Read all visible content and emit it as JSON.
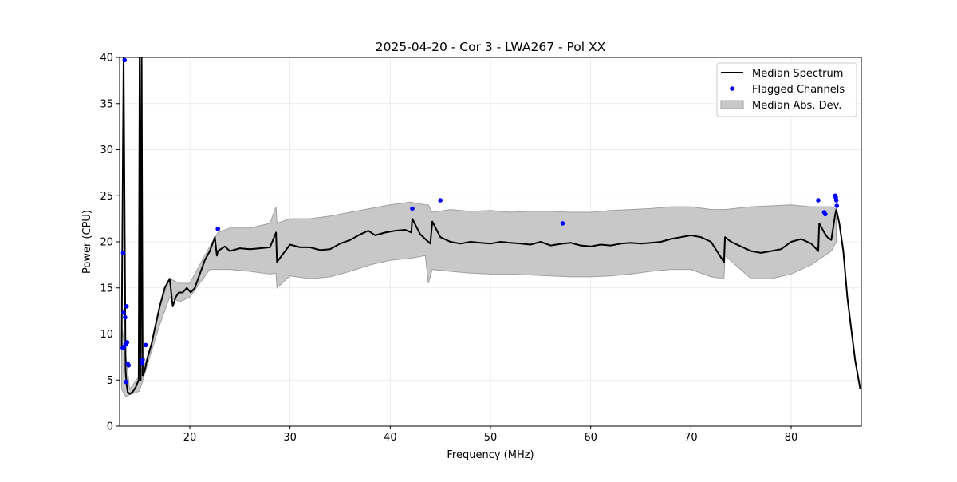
{
  "chart_data": {
    "type": "line",
    "title": "2025-04-20 - Cor 3 - LWA267 - Pol XX",
    "xlabel": "Frequency (MHz)",
    "ylabel": "Power (CPU)",
    "xlim": [
      13,
      87
    ],
    "ylim": [
      0,
      40
    ],
    "xticks": [
      20,
      30,
      40,
      50,
      60,
      70,
      80
    ],
    "yticks": [
      0,
      5,
      10,
      15,
      20,
      25,
      30,
      35,
      40
    ],
    "grid": true,
    "legend_position": "top-right",
    "colors": {
      "median": "#000000",
      "flagged": "#0000ff",
      "mad_fill": "#c8c8c8",
      "mad_edge": "#a0a0a0"
    },
    "legend": [
      {
        "label": "Median Spectrum",
        "kind": "line"
      },
      {
        "label": "Flagged Channels",
        "kind": "marker"
      },
      {
        "label": "Median Abs. Dev.",
        "kind": "patch"
      }
    ],
    "series": [
      {
        "name": "Median Spectrum",
        "x": [
          13.2,
          13.4,
          13.6,
          13.7,
          13.8,
          13.9,
          14.0,
          14.3,
          14.6,
          14.9,
          15.0,
          15.1,
          15.2,
          15.3,
          15.5,
          15.8,
          16.2,
          16.6,
          17.0,
          17.5,
          18.0,
          18.3,
          18.6,
          18.9,
          19.3,
          19.7,
          20.1,
          20.5,
          21.0,
          21.5,
          22.0,
          22.5,
          22.7,
          22.8,
          23.5,
          24.0,
          25.0,
          26.0,
          27.0,
          28.0,
          28.6,
          28.7,
          30.0,
          31.0,
          32.0,
          33.0,
          34.0,
          35.0,
          36.0,
          37.0,
          37.8,
          38.5,
          39.5,
          40.5,
          41.5,
          42.1,
          42.2,
          43.0,
          44.0,
          44.2,
          45.0,
          46.0,
          47.0,
          48.0,
          49.0,
          50.0,
          51.0,
          52.0,
          53.0,
          54.0,
          55.0,
          56.0,
          57.2,
          58.0,
          59.0,
          60.0,
          61.0,
          62.0,
          63.0,
          64.0,
          65.0,
          66.0,
          67.0,
          68.0,
          69.0,
          70.0,
          71.0,
          72.0,
          73.3,
          73.4,
          74.0,
          75.0,
          76.0,
          77.0,
          78.0,
          79.0,
          80.0,
          81.0,
          82.0,
          82.7,
          82.8,
          83.3,
          83.6,
          84.0,
          84.4,
          84.5,
          84.8,
          85.2,
          85.6,
          86.0,
          86.4,
          86.9
        ],
        "values": [
          8.5,
          40.0,
          6.0,
          4.5,
          3.7,
          3.6,
          3.5,
          3.7,
          4.2,
          5.0,
          40.0,
          5.0,
          40.0,
          5.5,
          6.0,
          7.5,
          9.0,
          11.0,
          13.0,
          15.0,
          16.0,
          13.0,
          14.0,
          14.5,
          14.5,
          15.0,
          14.5,
          15.0,
          16.5,
          18.0,
          19.0,
          20.5,
          18.5,
          19.0,
          19.5,
          19.0,
          19.3,
          19.2,
          19.3,
          19.4,
          21.0,
          17.8,
          19.7,
          19.4,
          19.4,
          19.1,
          19.2,
          19.8,
          20.2,
          20.8,
          21.2,
          20.7,
          21.0,
          21.2,
          21.3,
          21.0,
          22.5,
          20.8,
          19.8,
          22.2,
          20.5,
          20.0,
          19.8,
          20.0,
          19.9,
          19.8,
          20.0,
          19.9,
          19.8,
          19.7,
          20.0,
          19.6,
          19.8,
          19.9,
          19.6,
          19.5,
          19.7,
          19.6,
          19.8,
          19.9,
          19.8,
          19.9,
          20.0,
          20.3,
          20.5,
          20.7,
          20.5,
          20.0,
          17.8,
          20.5,
          20.0,
          19.5,
          19.0,
          18.8,
          19.0,
          19.2,
          20.0,
          20.3,
          19.8,
          19.0,
          22.0,
          21.0,
          20.5,
          20.2,
          23.0,
          23.5,
          22.0,
          19.0,
          14.0,
          10.5,
          7.0,
          4.0
        ]
      },
      {
        "name": "Median Abs. Dev.",
        "x": [
          13.2,
          13.6,
          14.0,
          15.0,
          16.0,
          17.0,
          18.0,
          19.0,
          20.0,
          21.0,
          22.0,
          22.8,
          24.0,
          26.0,
          28.0,
          28.6,
          28.7,
          30.0,
          32.0,
          34.0,
          36.0,
          38.0,
          40.0,
          42.0,
          43.5,
          43.8,
          44.2,
          46.0,
          48.0,
          50.0,
          52.0,
          54.0,
          56.0,
          58.0,
          60.0,
          62.0,
          64.0,
          66.0,
          68.0,
          70.0,
          72.0,
          73.3,
          73.4,
          76.0,
          78.0,
          80.0,
          82.0,
          84.0,
          84.5
        ],
        "upper": [
          11.0,
          8.0,
          4.0,
          5.5,
          8.0,
          13.0,
          16.0,
          15.5,
          15.5,
          17.5,
          19.5,
          21.0,
          21.5,
          21.5,
          22.0,
          23.8,
          22.0,
          22.5,
          22.5,
          22.8,
          23.2,
          23.6,
          24.0,
          24.3,
          24.0,
          24.0,
          23.2,
          23.5,
          23.3,
          23.4,
          23.2,
          23.3,
          23.3,
          23.2,
          23.2,
          23.4,
          23.5,
          23.6,
          23.8,
          23.8,
          23.5,
          23.5,
          23.5,
          23.8,
          23.9,
          24.0,
          23.8,
          23.8,
          23.5
        ],
        "lower": [
          4.0,
          3.2,
          3.4,
          3.8,
          7.5,
          11.0,
          14.0,
          13.5,
          14.0,
          15.5,
          17.0,
          17.0,
          17.0,
          16.8,
          16.5,
          16.6,
          15.0,
          16.3,
          16.0,
          16.2,
          16.8,
          17.5,
          18.0,
          18.2,
          18.5,
          15.5,
          17.0,
          16.8,
          16.6,
          16.5,
          16.5,
          16.4,
          16.3,
          16.2,
          16.2,
          16.3,
          16.5,
          16.8,
          17.0,
          17.0,
          16.2,
          16.0,
          18.5,
          16.0,
          16.0,
          16.5,
          17.5,
          19.0,
          20.0
        ]
      }
    ],
    "flagged_channels": {
      "x": [
        13.3,
        13.35,
        13.4,
        13.45,
        13.5,
        13.55,
        13.6,
        13.65,
        13.7,
        13.75,
        13.8,
        13.9,
        15.2,
        15.3,
        15.6,
        22.8,
        42.2,
        45.0,
        57.2,
        82.7,
        83.3,
        83.4,
        84.4,
        84.45,
        84.5,
        84.55
      ],
      "values": [
        8.5,
        18.8,
        12.3,
        8.6,
        39.7,
        11.8,
        8.9,
        4.8,
        13.0,
        9.1,
        6.8,
        6.6,
        6.8,
        7.2,
        8.8,
        21.4,
        23.6,
        24.5,
        22.0,
        24.5,
        23.2,
        23.0,
        25.0,
        24.8,
        24.5,
        23.9
      ]
    }
  }
}
